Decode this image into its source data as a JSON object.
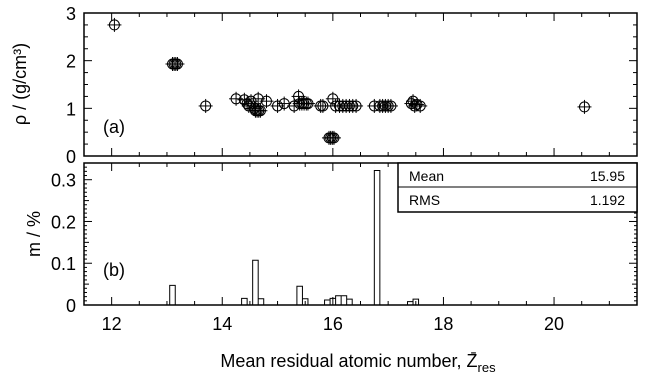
{
  "chart_data": [
    {
      "type": "scatter",
      "panel_label": "(a)",
      "ylabel": "ρ / (g/cm³)",
      "xlim": [
        11.5,
        21.5
      ],
      "ylim": [
        0,
        3
      ],
      "yticks": [
        "0",
        "1",
        "2",
        "3"
      ],
      "marker": "circle-with-cross",
      "points": [
        {
          "x": 12.05,
          "y": 2.75
        },
        {
          "x": 13.1,
          "y": 1.93
        },
        {
          "x": 13.13,
          "y": 1.93
        },
        {
          "x": 13.16,
          "y": 1.93
        },
        {
          "x": 13.19,
          "y": 1.93
        },
        {
          "x": 13.7,
          "y": 1.05
        },
        {
          "x": 14.25,
          "y": 1.2
        },
        {
          "x": 14.4,
          "y": 1.18
        },
        {
          "x": 14.45,
          "y": 1.1
        },
        {
          "x": 14.48,
          "y": 1.05
        },
        {
          "x": 14.52,
          "y": 1.15
        },
        {
          "x": 14.58,
          "y": 1.0
        },
        {
          "x": 14.6,
          "y": 0.95
        },
        {
          "x": 14.63,
          "y": 0.95
        },
        {
          "x": 14.66,
          "y": 0.95
        },
        {
          "x": 14.69,
          "y": 0.95
        },
        {
          "x": 14.65,
          "y": 1.2
        },
        {
          "x": 14.8,
          "y": 1.15
        },
        {
          "x": 15.0,
          "y": 1.05
        },
        {
          "x": 15.12,
          "y": 1.1
        },
        {
          "x": 15.3,
          "y": 1.05
        },
        {
          "x": 15.38,
          "y": 1.25
        },
        {
          "x": 15.4,
          "y": 1.1
        },
        {
          "x": 15.44,
          "y": 1.1
        },
        {
          "x": 15.48,
          "y": 1.1
        },
        {
          "x": 15.52,
          "y": 1.1
        },
        {
          "x": 15.55,
          "y": 1.1
        },
        {
          "x": 15.78,
          "y": 1.05
        },
        {
          "x": 15.82,
          "y": 1.05
        },
        {
          "x": 15.93,
          "y": 0.38
        },
        {
          "x": 15.96,
          "y": 0.38
        },
        {
          "x": 15.99,
          "y": 0.38
        },
        {
          "x": 16.02,
          "y": 0.38
        },
        {
          "x": 16.0,
          "y": 1.2
        },
        {
          "x": 16.05,
          "y": 1.05
        },
        {
          "x": 16.12,
          "y": 1.05
        },
        {
          "x": 16.18,
          "y": 1.05
        },
        {
          "x": 16.24,
          "y": 1.05
        },
        {
          "x": 16.3,
          "y": 1.05
        },
        {
          "x": 16.36,
          "y": 1.05
        },
        {
          "x": 16.42,
          "y": 1.05
        },
        {
          "x": 16.75,
          "y": 1.05
        },
        {
          "x": 16.85,
          "y": 1.05
        },
        {
          "x": 16.9,
          "y": 1.05
        },
        {
          "x": 16.95,
          "y": 1.05
        },
        {
          "x": 17.0,
          "y": 1.05
        },
        {
          "x": 17.05,
          "y": 1.05
        },
        {
          "x": 17.42,
          "y": 1.1
        },
        {
          "x": 17.45,
          "y": 1.15
        },
        {
          "x": 17.48,
          "y": 1.05
        },
        {
          "x": 17.52,
          "y": 1.08
        },
        {
          "x": 17.58,
          "y": 1.05
        },
        {
          "x": 20.55,
          "y": 1.03
        }
      ]
    },
    {
      "type": "bar",
      "style": "step-histogram",
      "panel_label": "(b)",
      "ylabel": "m / %",
      "xlabel": "Mean residual atomic number, Z̄",
      "xlabel_subscript": "res",
      "xlim": [
        11.5,
        21.5
      ],
      "ylim": [
        0,
        0.34
      ],
      "yticks": [
        "0",
        "0.1",
        "0.2",
        "0.3"
      ],
      "xticks": [
        "12",
        "14",
        "16",
        "18",
        "20"
      ],
      "bin_width": 0.1,
      "bins": [
        {
          "x": 13.1,
          "y": 0.047
        },
        {
          "x": 14.4,
          "y": 0.016
        },
        {
          "x": 14.6,
          "y": 0.107
        },
        {
          "x": 14.7,
          "y": 0.015
        },
        {
          "x": 15.4,
          "y": 0.045
        },
        {
          "x": 15.5,
          "y": 0.015
        },
        {
          "x": 15.9,
          "y": 0.012
        },
        {
          "x": 16.0,
          "y": 0.016
        },
        {
          "x": 16.1,
          "y": 0.022
        },
        {
          "x": 16.2,
          "y": 0.022
        },
        {
          "x": 16.3,
          "y": 0.014
        },
        {
          "x": 16.8,
          "y": 0.322
        },
        {
          "x": 17.4,
          "y": 0.008
        },
        {
          "x": 17.5,
          "y": 0.014
        }
      ],
      "stats": [
        {
          "label": "Mean",
          "value": "15.95"
        },
        {
          "label": "RMS",
          "value": "1.192"
        }
      ]
    }
  ]
}
